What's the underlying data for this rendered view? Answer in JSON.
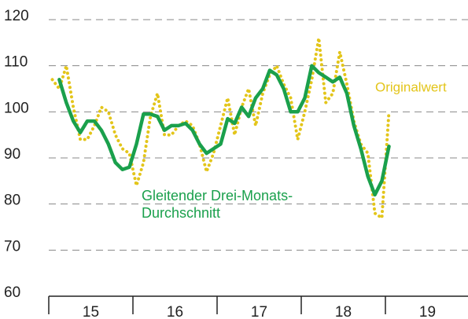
{
  "chart_data": {
    "type": "line",
    "categories": [
      null,
      null,
      null,
      null,
      null,
      null,
      null,
      null,
      null,
      null,
      null,
      null,
      null,
      null,
      null,
      null,
      null,
      null,
      null,
      null,
      null,
      null,
      null,
      null,
      null,
      null,
      null,
      null,
      null,
      null,
      null,
      null,
      null,
      null,
      null,
      null,
      null,
      null,
      null,
      null,
      null,
      null,
      null,
      null,
      null,
      null,
      null,
      null,
      null
    ],
    "year_labels": [
      "15",
      "16",
      "17",
      "18",
      "19"
    ],
    "series": [
      {
        "name": "Originalwert",
        "color": "#e3c51a",
        "style": "dotted",
        "values": [
          107,
          105,
          110,
          101,
          94,
          94,
          97,
          101,
          100,
          95,
          92,
          91,
          84,
          89,
          99,
          104,
          95,
          95,
          97,
          98,
          97,
          93,
          87,
          91,
          97,
          103,
          95,
          101,
          105,
          97,
          104,
          108,
          110,
          106,
          103,
          94,
          100,
          107,
          116,
          102,
          104,
          113,
          106,
          98,
          93,
          91,
          78,
          77,
          100
        ]
      },
      {
        "name": "Gleitender Drei-Monats-Durchschnitt",
        "label_lines": [
          "Gleitender Drei-Monats-",
          "Durchschnitt"
        ],
        "color": "#1aa04c",
        "style": "solid",
        "values": [
          null,
          107,
          102,
          98,
          95.5,
          98,
          98,
          96,
          93,
          89,
          87.5,
          88,
          93,
          99.5,
          99.5,
          99,
          96,
          97,
          97,
          97.5,
          96,
          93,
          91,
          92,
          93,
          98.5,
          97.5,
          101,
          99,
          103,
          105,
          109,
          108,
          105,
          100,
          100,
          103,
          110,
          108.5,
          107.5,
          106.5,
          107.5,
          104,
          97,
          92,
          86,
          82,
          85,
          92.5
        ]
      }
    ],
    "ylim": [
      60,
      120
    ],
    "yticks": [
      60,
      70,
      80,
      90,
      100,
      110,
      120
    ],
    "grid": true
  }
}
